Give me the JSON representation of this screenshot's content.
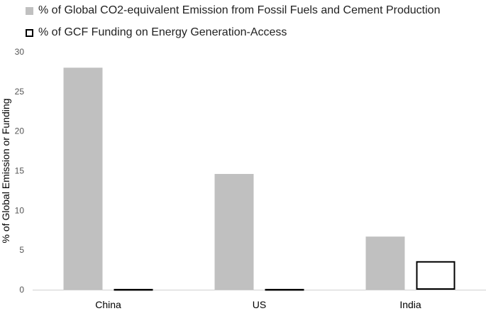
{
  "chart_data": {
    "type": "bar",
    "categories": [
      "China",
      "US",
      "India"
    ],
    "series": [
      {
        "name": "% of Global CO2-equivalent Emission from Fossil Fuels and Cement Production",
        "values": [
          28.0,
          14.6,
          6.7
        ],
        "color": "#c0c0c0",
        "style": "filled"
      },
      {
        "name": "% of GCF Funding on Energy Generation-Access",
        "values": [
          0.1,
          0.1,
          3.6
        ],
        "color": "#000000",
        "style": "outline"
      }
    ],
    "ylabel": "% of Global Emission or Funding",
    "xlabel": "",
    "ylim": [
      0,
      30
    ],
    "yticks": [
      0,
      5,
      10,
      15,
      20,
      25,
      30
    ],
    "grid": false,
    "legend_position": "top-left"
  }
}
